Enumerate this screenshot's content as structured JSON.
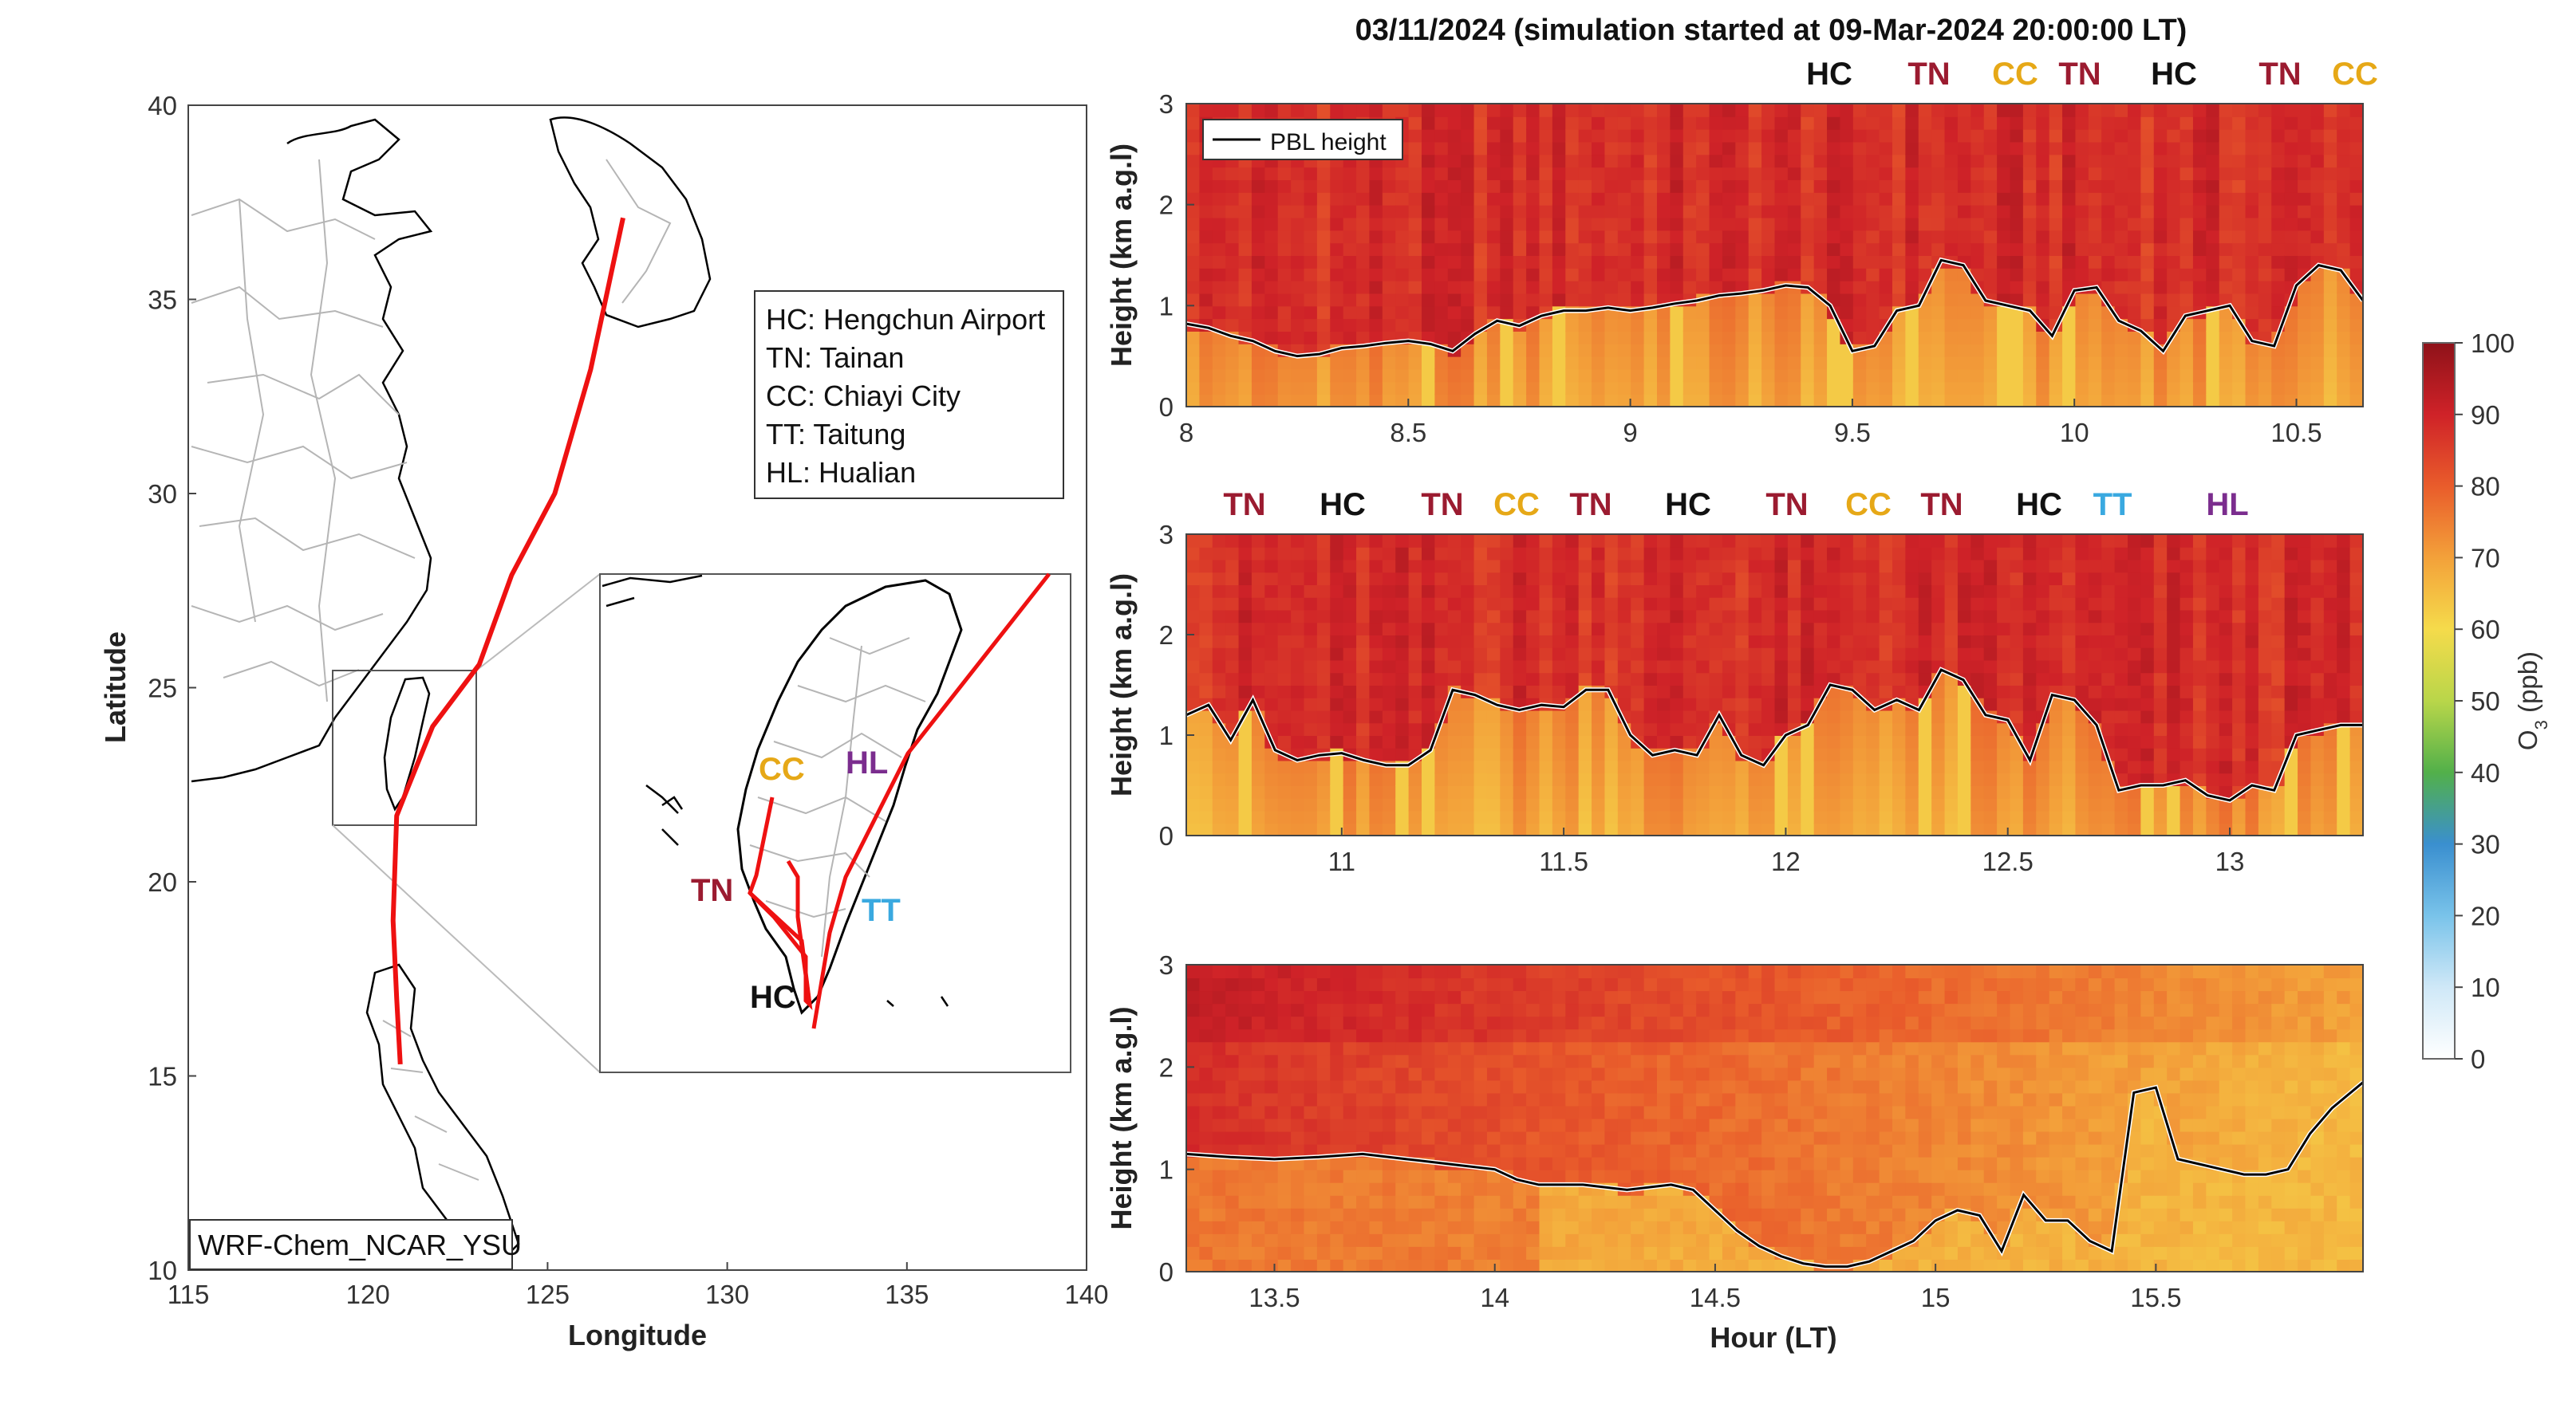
{
  "figure_title": "03/11/2024 (simulation started at 09-Mar-2024 20:00:00 LT)",
  "colors": {
    "track": "#ee1111",
    "HC": "#111111",
    "TN": "#9b1b30",
    "CC": "#e6a817",
    "TT": "#3aa9e0",
    "HL": "#7b2d8e",
    "pbl": "#000000"
  },
  "map": {
    "xlabel": "Longitude",
    "ylabel": "Latitude",
    "xticks": [
      "115",
      "120",
      "125",
      "130",
      "135",
      "140"
    ],
    "yticks": [
      "10",
      "15",
      "20",
      "25",
      "30",
      "35",
      "40"
    ],
    "xlim": [
      115,
      140
    ],
    "ylim": [
      10,
      40
    ],
    "model_label": "WRF-Chem_NCAR_YSU",
    "legend_lines": [
      "HC: Hengchun Airport",
      "TN: Tainan",
      "CC: Chiayi City",
      "TT: Taitung",
      "HL: Hualian"
    ],
    "inset_sites": [
      {
        "code": "CC",
        "color_key": "CC"
      },
      {
        "code": "HL",
        "color_key": "HL"
      },
      {
        "code": "TN",
        "color_key": "TN"
      },
      {
        "code": "TT",
        "color_key": "TT"
      },
      {
        "code": "HC",
        "color_key": "HC"
      }
    ],
    "track_lonlat": [
      [
        127.1,
        37.1
      ],
      [
        126.2,
        33.2
      ],
      [
        125.2,
        30.0
      ],
      [
        124.0,
        27.9
      ],
      [
        123.1,
        25.6
      ],
      [
        121.8,
        24.0
      ],
      [
        121.1,
        22.4
      ],
      [
        120.8,
        21.7
      ],
      [
        120.7,
        19.0
      ],
      [
        120.8,
        17.0
      ],
      [
        120.9,
        15.3
      ]
    ]
  },
  "colorbar": {
    "label": "O3 (ppb)",
    "ticks": [
      "0",
      "10",
      "20",
      "30",
      "40",
      "50",
      "60",
      "70",
      "80",
      "90",
      "100"
    ],
    "range": [
      0,
      100
    ]
  },
  "chart_data": [
    {
      "type": "heatmap",
      "title": "",
      "xlabel": "",
      "ylabel": "Height (km a.g.l)",
      "xlim": [
        8.0,
        10.65
      ],
      "ylim": [
        0,
        3
      ],
      "xticks": [
        "8",
        "8.5",
        "9",
        "9.5",
        "10",
        "10.5"
      ],
      "yticks": [
        "0",
        "1",
        "2",
        "3"
      ],
      "legend": "PBL height",
      "site_sequence": [
        "HC",
        "TN",
        "CC",
        "TN",
        "HC",
        "TN",
        "CC"
      ],
      "pbl_height": {
        "x": [
          8.0,
          8.05,
          8.1,
          8.15,
          8.2,
          8.25,
          8.3,
          8.35,
          8.4,
          8.45,
          8.5,
          8.55,
          8.6,
          8.65,
          8.7,
          8.75,
          8.8,
          8.85,
          8.9,
          8.95,
          9.0,
          9.05,
          9.1,
          9.15,
          9.2,
          9.25,
          9.3,
          9.35,
          9.4,
          9.45,
          9.5,
          9.55,
          9.6,
          9.65,
          9.7,
          9.75,
          9.8,
          9.85,
          9.9,
          9.95,
          10.0,
          10.05,
          10.1,
          10.15,
          10.2,
          10.25,
          10.3,
          10.35,
          10.4,
          10.45,
          10.5,
          10.55,
          10.6,
          10.65
        ],
        "y": [
          0.82,
          0.78,
          0.7,
          0.65,
          0.55,
          0.5,
          0.52,
          0.58,
          0.6,
          0.63,
          0.65,
          0.62,
          0.55,
          0.72,
          0.85,
          0.8,
          0.9,
          0.95,
          0.95,
          0.98,
          0.95,
          0.98,
          1.02,
          1.05,
          1.1,
          1.12,
          1.15,
          1.2,
          1.18,
          1.0,
          0.55,
          0.6,
          0.95,
          1.0,
          1.45,
          1.4,
          1.05,
          1.0,
          0.95,
          0.7,
          1.15,
          1.18,
          0.85,
          0.75,
          0.55,
          0.9,
          0.95,
          1.0,
          0.65,
          0.6,
          1.2,
          1.4,
          1.35,
          1.05
        ]
      }
    },
    {
      "type": "heatmap",
      "title": "",
      "xlabel": "",
      "ylabel": "Height (km a.g.l)",
      "xlim": [
        10.65,
        13.3
      ],
      "ylim": [
        0,
        3
      ],
      "xticks": [
        "11",
        "11.5",
        "12",
        "12.5",
        "13"
      ],
      "yticks": [
        "0",
        "1",
        "2",
        "3"
      ],
      "site_sequence": [
        "TN",
        "HC",
        "TN",
        "CC",
        "TN",
        "HC",
        "TN",
        "CC",
        "TN",
        "HC",
        "TT",
        "HL"
      ],
      "pbl_height": {
        "x": [
          10.65,
          10.7,
          10.75,
          10.8,
          10.85,
          10.9,
          10.95,
          11.0,
          11.05,
          11.1,
          11.15,
          11.2,
          11.25,
          11.3,
          11.35,
          11.4,
          11.45,
          11.5,
          11.55,
          11.6,
          11.65,
          11.7,
          11.75,
          11.8,
          11.85,
          11.9,
          11.95,
          12.0,
          12.05,
          12.1,
          12.15,
          12.2,
          12.25,
          12.3,
          12.35,
          12.4,
          12.45,
          12.5,
          12.55,
          12.6,
          12.65,
          12.7,
          12.75,
          12.8,
          12.85,
          12.9,
          12.95,
          13.0,
          13.05,
          13.1,
          13.15,
          13.2,
          13.25,
          13.3
        ],
        "y": [
          1.2,
          1.3,
          0.95,
          1.35,
          0.85,
          0.75,
          0.8,
          0.82,
          0.75,
          0.7,
          0.7,
          0.85,
          1.45,
          1.4,
          1.3,
          1.25,
          1.3,
          1.28,
          1.45,
          1.45,
          1.0,
          0.8,
          0.85,
          0.8,
          1.2,
          0.8,
          0.7,
          1.0,
          1.1,
          1.5,
          1.45,
          1.25,
          1.35,
          1.25,
          1.65,
          1.55,
          1.2,
          1.15,
          0.75,
          1.4,
          1.35,
          1.1,
          0.45,
          0.5,
          0.5,
          0.55,
          0.4,
          0.35,
          0.5,
          0.45,
          1.0,
          1.05,
          1.1,
          1.1
        ]
      }
    },
    {
      "type": "heatmap",
      "title": "",
      "xlabel": "Hour (LT)",
      "ylabel": "Height (km a.g.l)",
      "xlim": [
        13.3,
        15.97
      ],
      "ylim": [
        0,
        3
      ],
      "xticks": [
        "13.5",
        "14",
        "14.5",
        "15",
        "15.5"
      ],
      "yticks": [
        "0",
        "1",
        "2",
        "3"
      ],
      "pbl_height": {
        "x": [
          13.3,
          13.4,
          13.5,
          13.6,
          13.7,
          13.8,
          13.9,
          14.0,
          14.05,
          14.1,
          14.2,
          14.3,
          14.4,
          14.45,
          14.5,
          14.55,
          14.6,
          14.65,
          14.7,
          14.75,
          14.8,
          14.85,
          14.9,
          14.95,
          15.0,
          15.05,
          15.1,
          15.15,
          15.2,
          15.25,
          15.3,
          15.35,
          15.4,
          15.45,
          15.5,
          15.55,
          15.6,
          15.65,
          15.7,
          15.75,
          15.8,
          15.85,
          15.9,
          15.97
        ],
        "y": [
          1.15,
          1.12,
          1.1,
          1.12,
          1.15,
          1.1,
          1.05,
          1.0,
          0.9,
          0.85,
          0.85,
          0.8,
          0.85,
          0.8,
          0.6,
          0.4,
          0.25,
          0.15,
          0.08,
          0.05,
          0.05,
          0.1,
          0.2,
          0.3,
          0.5,
          0.6,
          0.55,
          0.2,
          0.75,
          0.5,
          0.5,
          0.3,
          0.2,
          1.75,
          1.8,
          1.1,
          1.05,
          1.0,
          0.95,
          0.95,
          1.0,
          1.35,
          1.6,
          1.85
        ]
      }
    }
  ]
}
